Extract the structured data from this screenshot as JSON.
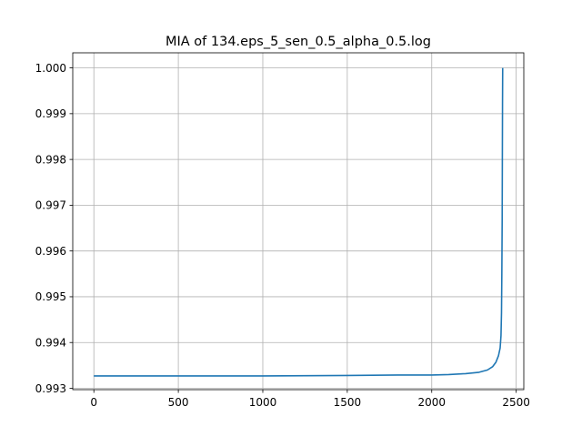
{
  "chart_data": {
    "type": "line",
    "title": "MIA of 134.eps_5_sen_0.5_alpha_0.5.log",
    "xlabel": "",
    "ylabel": "",
    "grid": true,
    "xlim": [
      -125,
      2545
    ],
    "ylim": [
      0.99297,
      1.00033
    ],
    "x_ticks": [
      {
        "value": 0,
        "label": "0"
      },
      {
        "value": 500,
        "label": "500"
      },
      {
        "value": 1000,
        "label": "1000"
      },
      {
        "value": 1500,
        "label": "1500"
      },
      {
        "value": 2000,
        "label": "2000"
      },
      {
        "value": 2500,
        "label": "2500"
      }
    ],
    "y_ticks": [
      {
        "value": 0.993,
        "label": "0.993"
      },
      {
        "value": 0.994,
        "label": "0.994"
      },
      {
        "value": 0.995,
        "label": "0.995"
      },
      {
        "value": 0.996,
        "label": "0.996"
      },
      {
        "value": 0.997,
        "label": "0.997"
      },
      {
        "value": 0.998,
        "label": "0.998"
      },
      {
        "value": 0.999,
        "label": "0.999"
      },
      {
        "value": 1.0,
        "label": "1.000"
      }
    ],
    "series": [
      {
        "color": "#1f77b4",
        "x": [
          0,
          500,
          1000,
          1500,
          1800,
          2000,
          2100,
          2200,
          2280,
          2330,
          2360,
          2380,
          2395,
          2405,
          2410,
          2413,
          2415,
          2417,
          2418,
          2419,
          2420
        ],
        "y": [
          0.99327,
          0.99327,
          0.99327,
          0.99328,
          0.99329,
          0.99329,
          0.9933,
          0.99332,
          0.99335,
          0.9934,
          0.99347,
          0.99357,
          0.99371,
          0.99388,
          0.99415,
          0.99465,
          0.9955,
          0.9967,
          0.998,
          0.9992,
          1.0
        ]
      }
    ]
  }
}
